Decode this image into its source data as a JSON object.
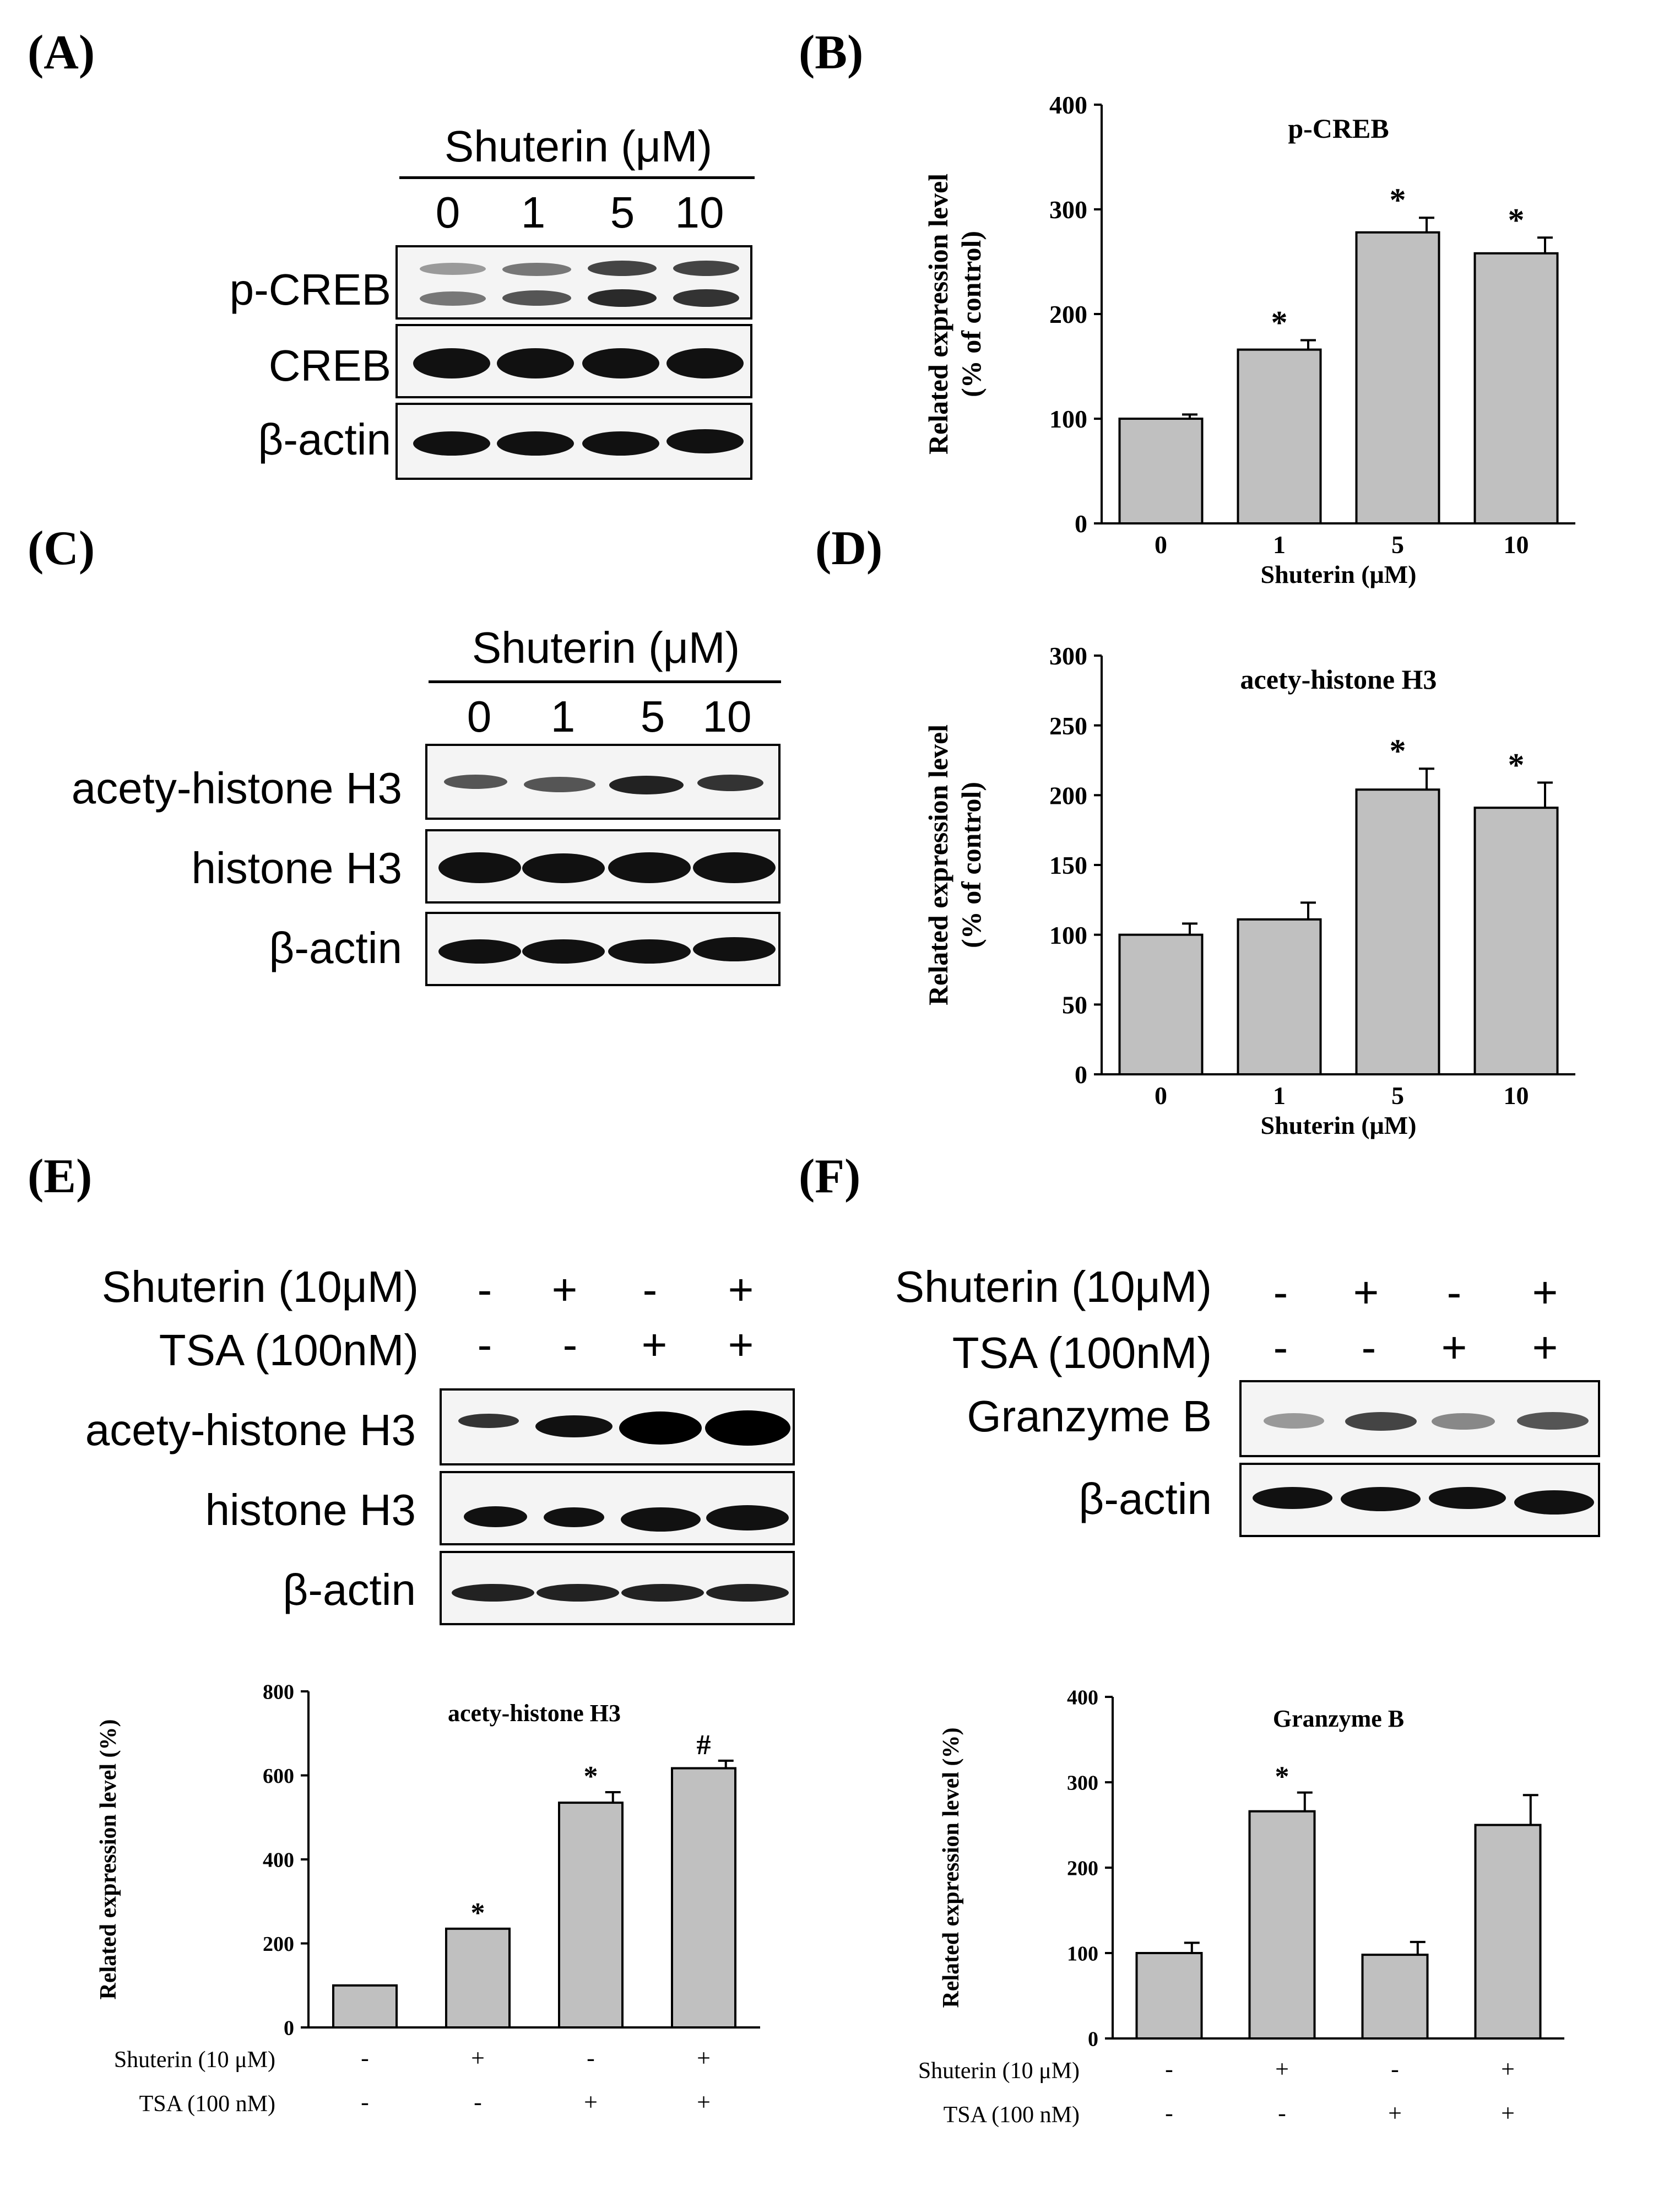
{
  "panels": {
    "A": "(A)",
    "B": "(B)",
    "C": "(C)",
    "D": "(D)",
    "E": "(E)",
    "F": "(F)"
  },
  "blotA": {
    "header": "Shuterin (μM)",
    "lanes": [
      "0",
      "1",
      "5",
      "10"
    ],
    "rows": [
      "p-CREB",
      "CREB",
      "β-actin"
    ]
  },
  "blotC": {
    "header": "Shuterin (μM)",
    "lanes": [
      "0",
      "1",
      "5",
      "10"
    ],
    "rows": [
      "acety-histone H3",
      "histone H3",
      "β-actin"
    ]
  },
  "blotE": {
    "cond1": "Shuterin (10μM)",
    "cond2": "TSA (100nM)",
    "signs1": [
      "-",
      "+",
      "-",
      "+"
    ],
    "signs2": [
      "-",
      "-",
      "+",
      "+"
    ],
    "rows": [
      "acety-histone H3",
      "histone H3",
      "β-actin"
    ]
  },
  "blotF": {
    "cond1": "Shuterin (10μM)",
    "cond2": "TSA (100nM)",
    "signs1": [
      "-",
      "+",
      "-",
      "+"
    ],
    "signs2": [
      "-",
      "-",
      "+",
      "+"
    ],
    "rows": [
      "Granzyme B",
      "β-actin"
    ]
  },
  "chart_data": [
    {
      "id": "B",
      "type": "bar",
      "title": "p-CREB",
      "ylabel_line1": "Related expression level",
      "ylabel_line2": "(% of control)",
      "xlabel": "Shuterin (μM)",
      "categories": [
        "0",
        "1",
        "5",
        "10"
      ],
      "values": [
        100,
        166,
        278,
        258
      ],
      "errors": [
        4,
        9,
        14,
        15
      ],
      "annotations": [
        "",
        "*",
        "*",
        "*"
      ],
      "ylim": [
        0,
        400
      ],
      "yticks": [
        0,
        100,
        200,
        300,
        400
      ],
      "bar_color": "#c0c0c0"
    },
    {
      "id": "D",
      "type": "bar",
      "title": "acety-histone H3",
      "ylabel_line1": "Related expression level",
      "ylabel_line2": "(% of control)",
      "xlabel": "Shuterin (μM)",
      "categories": [
        "0",
        "1",
        "5",
        "10"
      ],
      "values": [
        100,
        111,
        204,
        191
      ],
      "errors": [
        8,
        12,
        15,
        18
      ],
      "annotations": [
        "",
        "",
        "*",
        "*"
      ],
      "ylim": [
        0,
        300
      ],
      "yticks": [
        0,
        50,
        100,
        150,
        200,
        250,
        300
      ],
      "bar_color": "#c0c0c0"
    },
    {
      "id": "E",
      "type": "bar",
      "title": "acety-histone H3",
      "ylabel_line1": "Related expression level (%)",
      "ylabel_line2": "",
      "xlabel": "",
      "categories": [
        "",
        "",
        "",
        ""
      ],
      "row_labels": [
        "Shuterin (10 μM)",
        "TSA (100 nM)"
      ],
      "signs1": [
        "-",
        "+",
        "-",
        "+"
      ],
      "signs2": [
        "-",
        "-",
        "+",
        "+"
      ],
      "values": [
        100,
        235,
        535,
        617
      ],
      "errors": [
        0,
        0,
        25,
        18
      ],
      "annotations": [
        "",
        "*",
        "*",
        "#"
      ],
      "ylim": [
        0,
        800
      ],
      "yticks": [
        0,
        200,
        400,
        600,
        800
      ],
      "bar_color": "#c0c0c0"
    },
    {
      "id": "F",
      "type": "bar",
      "title": "Granzyme B",
      "ylabel_line1": "Related expression level (%)",
      "ylabel_line2": "",
      "xlabel": "",
      "categories": [
        "",
        "",
        "",
        ""
      ],
      "row_labels": [
        "Shuterin (10 μM)",
        "TSA (100 nM)"
      ],
      "signs1": [
        "-",
        "+",
        "-",
        "+"
      ],
      "signs2": [
        "-",
        "-",
        "+",
        "+"
      ],
      "values": [
        100,
        266,
        98,
        250
      ],
      "errors": [
        12,
        22,
        15,
        35
      ],
      "annotations": [
        "",
        "*",
        "",
        ""
      ],
      "ylim": [
        0,
        400
      ],
      "yticks": [
        0,
        100,
        200,
        300,
        400
      ],
      "bar_color": "#c0c0c0"
    }
  ]
}
